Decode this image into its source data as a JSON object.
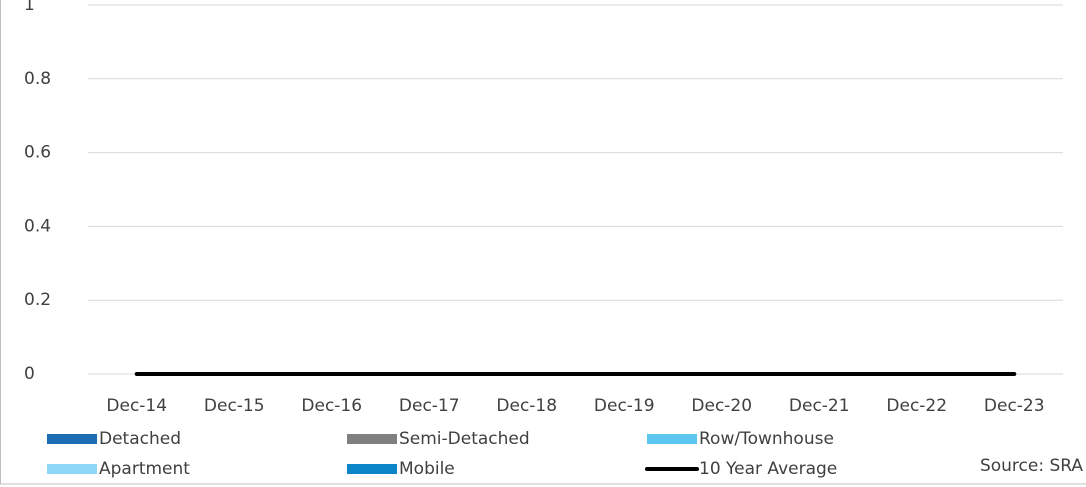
{
  "chart_data": {
    "type": "bar",
    "stacked": true,
    "categories": [
      "Dec-14",
      "Dec-15",
      "Dec-16",
      "Dec-17",
      "Dec-18",
      "Dec-19",
      "Dec-20",
      "Dec-21",
      "Dec-22",
      "Dec-23"
    ],
    "series": [
      {
        "name": "Detached",
        "color": "#1c6db3",
        "values": [
          0,
          0,
          0,
          0,
          0,
          0,
          0,
          0,
          0,
          0
        ]
      },
      {
        "name": "Semi-Detached",
        "color": "#808080",
        "values": [
          0,
          0,
          0,
          0,
          0,
          0,
          0,
          0,
          0,
          0
        ]
      },
      {
        "name": "Row/Townhouse",
        "color": "#5cc8f2",
        "values": [
          0,
          0,
          0,
          0,
          0,
          0,
          0,
          0,
          0,
          0
        ]
      },
      {
        "name": "Apartment",
        "color": "#8fd7f6",
        "values": [
          0,
          0,
          0,
          0,
          0,
          0,
          0,
          0,
          0,
          0
        ]
      },
      {
        "name": "Mobile",
        "color": "#0b85c8",
        "values": [
          0,
          0,
          0,
          0,
          0,
          0,
          0,
          0,
          0,
          0
        ]
      },
      {
        "name": "10 Year Average",
        "color": "#000000",
        "type": "line",
        "values": [
          0,
          0,
          0,
          0,
          0,
          0,
          0,
          0,
          0,
          0
        ]
      }
    ],
    "ylim": [
      0,
      1
    ],
    "yticks": [
      0,
      0.2,
      0.4,
      0.6,
      0.8,
      1
    ],
    "grid": true,
    "legend": "bottom",
    "source": "Source: SRA"
  }
}
